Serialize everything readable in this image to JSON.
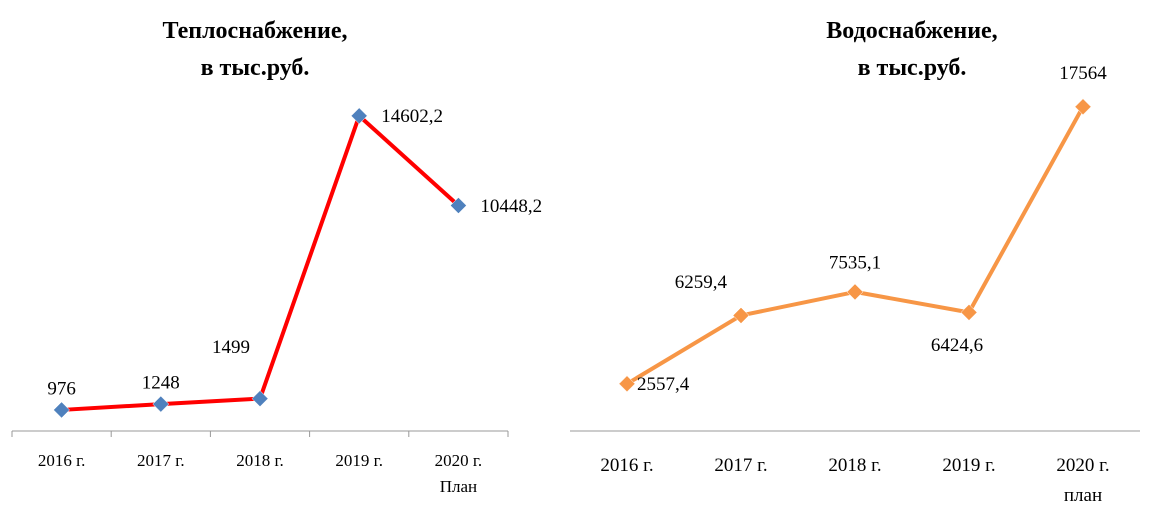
{
  "chart_data": [
    {
      "type": "line",
      "title": "Теплоснабжение,\nв тыс.руб.",
      "categories": [
        "2016 г.",
        "2017 г.",
        "2018 г.",
        "2019 г.",
        "2020 г.\nПлан"
      ],
      "series": [
        {
          "color": "#ff0000",
          "marker_color": "#4f81bd",
          "values": [
            976,
            1248,
            1499,
            14602.2,
            10448.2
          ],
          "value_labels": [
            "976",
            "1248",
            "1499",
            "14602,2",
            "10448,2"
          ]
        }
      ],
      "ylim": [
        0,
        16000
      ]
    },
    {
      "type": "line",
      "title": "Водоснабжение,\nв тыс.руб.",
      "categories": [
        "2016  г.",
        "2017  г.",
        "2018  г.",
        "2019  г.",
        "2020  г.\nплан"
      ],
      "series": [
        {
          "color": "#f79646",
          "marker_color": "#f79646",
          "values": [
            2557.4,
            6259.4,
            7535.1,
            6424.6,
            17564
          ],
          "value_labels": [
            "2557,4",
            "6259,4",
            "7535,1",
            "6424,6",
            "17564"
          ]
        }
      ],
      "ylim": [
        0,
        18000
      ]
    }
  ]
}
